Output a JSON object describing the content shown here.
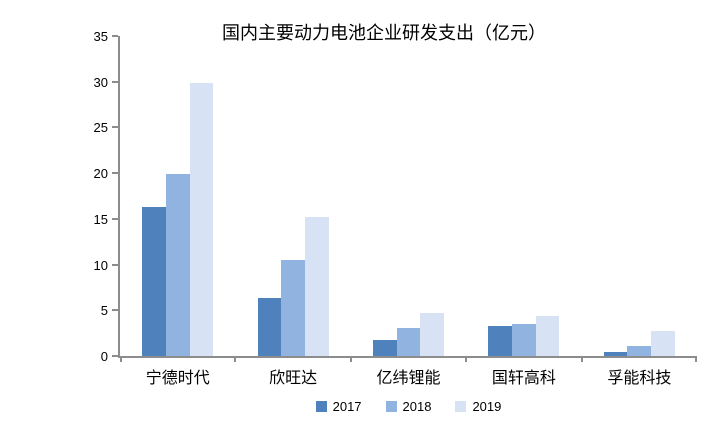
{
  "chart_data": {
    "type": "bar",
    "title": "国内主要动力电池企业研发支出（亿元）",
    "categories": [
      "宁德时代",
      "欣旺达",
      "亿纬锂能",
      "国轩高科",
      "孚能科技"
    ],
    "series": [
      {
        "name": "2017",
        "color": "#4F81BD",
        "values": [
          16.3,
          6.4,
          1.8,
          3.3,
          0.4
        ]
      },
      {
        "name": "2018",
        "color": "#91B3E0",
        "values": [
          19.9,
          10.5,
          3.1,
          3.5,
          1.1
        ]
      },
      {
        "name": "2019",
        "color": "#D7E3F4",
        "values": [
          29.9,
          15.2,
          4.7,
          4.4,
          2.7
        ]
      }
    ],
    "xlabel": "",
    "ylabel": "",
    "ylim": [
      0,
      35
    ],
    "ytick_step": 5,
    "grid": false,
    "legend_position": "bottom",
    "axis_color": "#8C8C8C",
    "text_color": "#000000"
  }
}
